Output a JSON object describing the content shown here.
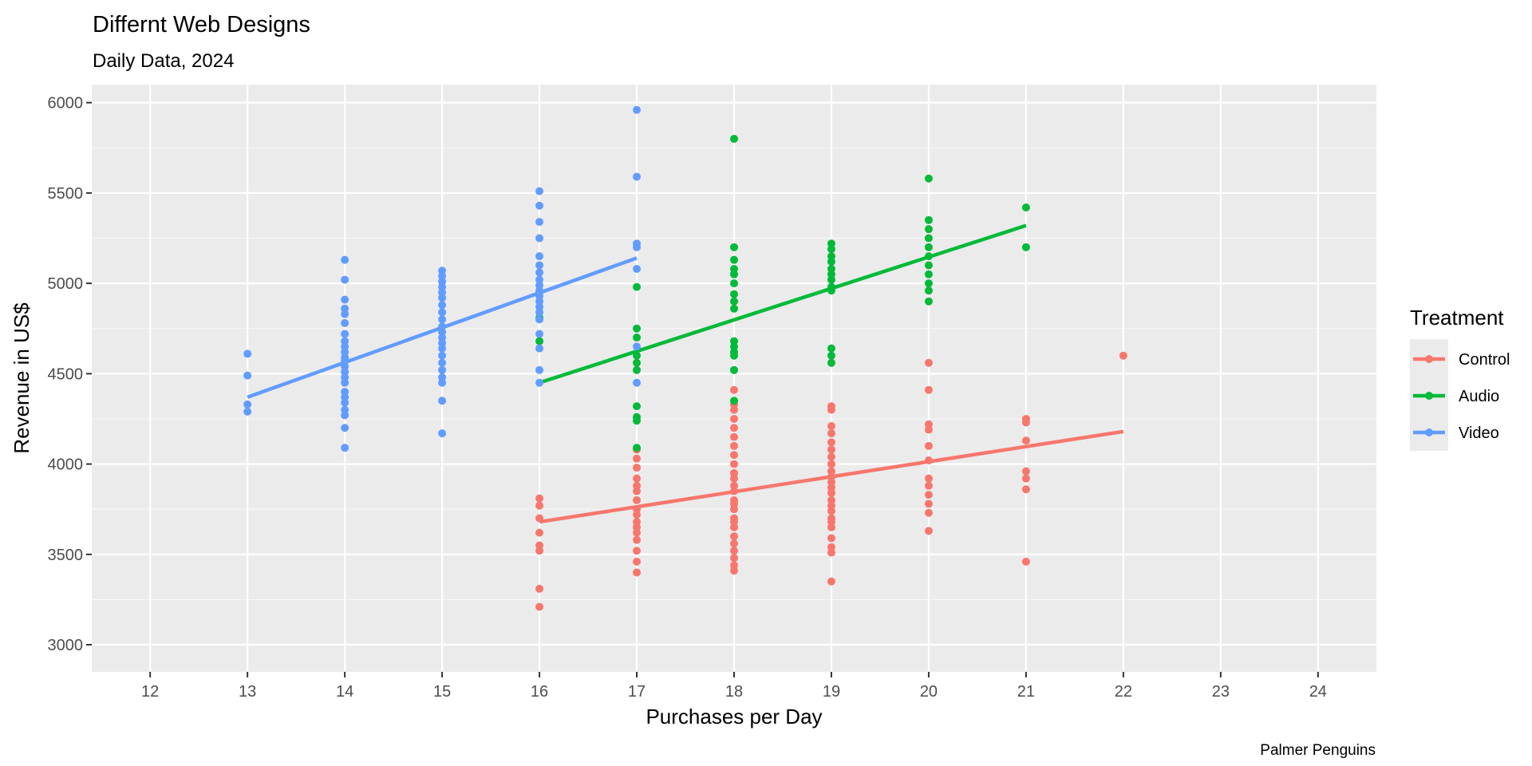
{
  "chart_data": {
    "type": "scatter",
    "title": "Differnt Web Designs",
    "subtitle": "Daily Data, 2024",
    "xlabel": "Purchases per Day",
    "ylabel": "Revenue in US$",
    "caption": "Palmer Penguins",
    "xlim": [
      11.4,
      24.6
    ],
    "ylim": [
      2850,
      6100
    ],
    "x_ticks": [
      12,
      13,
      14,
      15,
      16,
      17,
      18,
      19,
      20,
      21,
      22,
      23,
      24
    ],
    "y_ticks": [
      3000,
      3500,
      4000,
      4500,
      5000,
      5500,
      6000
    ],
    "grid": true,
    "legend": {
      "title": "Treatment",
      "position": "right"
    },
    "series": [
      {
        "name": "Control",
        "color": "#F8766D",
        "fit_line": {
          "x": [
            16,
            22
          ],
          "y": [
            3680,
            4180
          ]
        },
        "points": [
          [
            16,
            3810
          ],
          [
            16,
            3770
          ],
          [
            16,
            3700
          ],
          [
            16,
            3620
          ],
          [
            16,
            3550
          ],
          [
            16,
            3520
          ],
          [
            16,
            3310
          ],
          [
            16,
            3210
          ],
          [
            17,
            4080
          ],
          [
            17,
            4030
          ],
          [
            17,
            3980
          ],
          [
            17,
            3920
          ],
          [
            17,
            3880
          ],
          [
            17,
            3850
          ],
          [
            17,
            3800
          ],
          [
            17,
            3750
          ],
          [
            17,
            3720
          ],
          [
            17,
            3680
          ],
          [
            17,
            3650
          ],
          [
            17,
            3620
          ],
          [
            17,
            3580
          ],
          [
            17,
            3520
          ],
          [
            17,
            3460
          ],
          [
            17,
            3400
          ],
          [
            18,
            4410
          ],
          [
            18,
            4330
          ],
          [
            18,
            4300
          ],
          [
            18,
            4250
          ],
          [
            18,
            4200
          ],
          [
            18,
            4150
          ],
          [
            18,
            4100
          ],
          [
            18,
            4050
          ],
          [
            18,
            4000
          ],
          [
            18,
            3950
          ],
          [
            18,
            3920
          ],
          [
            18,
            3880
          ],
          [
            18,
            3850
          ],
          [
            18,
            3800
          ],
          [
            18,
            3780
          ],
          [
            18,
            3750
          ],
          [
            18,
            3700
          ],
          [
            18,
            3680
          ],
          [
            18,
            3650
          ],
          [
            18,
            3600
          ],
          [
            18,
            3560
          ],
          [
            18,
            3520
          ],
          [
            18,
            3480
          ],
          [
            18,
            3440
          ],
          [
            18,
            3410
          ],
          [
            19,
            4320
          ],
          [
            19,
            4300
          ],
          [
            19,
            4210
          ],
          [
            19,
            4170
          ],
          [
            19,
            4120
          ],
          [
            19,
            4080
          ],
          [
            19,
            4040
          ],
          [
            19,
            4000
          ],
          [
            19,
            3960
          ],
          [
            19,
            3930
          ],
          [
            19,
            3900
          ],
          [
            19,
            3870
          ],
          [
            19,
            3840
          ],
          [
            19,
            3800
          ],
          [
            19,
            3770
          ],
          [
            19,
            3740
          ],
          [
            19,
            3700
          ],
          [
            19,
            3680
          ],
          [
            19,
            3650
          ],
          [
            19,
            3590
          ],
          [
            19,
            3540
          ],
          [
            19,
            3510
          ],
          [
            19,
            3350
          ],
          [
            20,
            4560
          ],
          [
            20,
            4410
          ],
          [
            20,
            4220
          ],
          [
            20,
            4190
          ],
          [
            20,
            4100
          ],
          [
            20,
            4020
          ],
          [
            20,
            3920
          ],
          [
            20,
            3880
          ],
          [
            20,
            3830
          ],
          [
            20,
            3780
          ],
          [
            20,
            3730
          ],
          [
            20,
            3630
          ],
          [
            21,
            4250
          ],
          [
            21,
            4230
          ],
          [
            21,
            4130
          ],
          [
            21,
            3960
          ],
          [
            21,
            3920
          ],
          [
            21,
            3860
          ],
          [
            21,
            3460
          ],
          [
            22,
            4600
          ]
        ]
      },
      {
        "name": "Audio",
        "color": "#00BA38",
        "fit_line": {
          "x": [
            16,
            21
          ],
          "y": [
            4450,
            5320
          ]
        },
        "points": [
          [
            16,
            4810
          ],
          [
            16,
            4680
          ],
          [
            17,
            4980
          ],
          [
            17,
            4750
          ],
          [
            17,
            4700
          ],
          [
            17,
            4600
          ],
          [
            17,
            4560
          ],
          [
            17,
            4520
          ],
          [
            17,
            4320
          ],
          [
            17,
            4260
          ],
          [
            17,
            4240
          ],
          [
            17,
            4090
          ],
          [
            18,
            5800
          ],
          [
            18,
            5200
          ],
          [
            18,
            5130
          ],
          [
            18,
            5080
          ],
          [
            18,
            5050
          ],
          [
            18,
            5000
          ],
          [
            18,
            4940
          ],
          [
            18,
            4900
          ],
          [
            18,
            4860
          ],
          [
            18,
            4680
          ],
          [
            18,
            4650
          ],
          [
            18,
            4620
          ],
          [
            18,
            4600
          ],
          [
            18,
            4520
          ],
          [
            18,
            4350
          ],
          [
            19,
            5220
          ],
          [
            19,
            5190
          ],
          [
            19,
            5150
          ],
          [
            19,
            5120
          ],
          [
            19,
            5080
          ],
          [
            19,
            5050
          ],
          [
            19,
            5020
          ],
          [
            19,
            4980
          ],
          [
            19,
            4960
          ],
          [
            19,
            4640
          ],
          [
            19,
            4600
          ],
          [
            19,
            4560
          ],
          [
            20,
            5580
          ],
          [
            20,
            5350
          ],
          [
            20,
            5300
          ],
          [
            20,
            5250
          ],
          [
            20,
            5200
          ],
          [
            20,
            5150
          ],
          [
            20,
            5100
          ],
          [
            20,
            5050
          ],
          [
            20,
            5000
          ],
          [
            20,
            4960
          ],
          [
            20,
            4900
          ],
          [
            21,
            5420
          ],
          [
            21,
            5200
          ]
        ]
      },
      {
        "name": "Video",
        "color": "#619CFF",
        "fit_line": {
          "x": [
            13,
            17
          ],
          "y": [
            4370,
            5140
          ]
        },
        "points": [
          [
            13,
            4610
          ],
          [
            13,
            4490
          ],
          [
            13,
            4330
          ],
          [
            13,
            4290
          ],
          [
            14,
            5130
          ],
          [
            14,
            5020
          ],
          [
            14,
            4910
          ],
          [
            14,
            4860
          ],
          [
            14,
            4830
          ],
          [
            14,
            4780
          ],
          [
            14,
            4720
          ],
          [
            14,
            4680
          ],
          [
            14,
            4650
          ],
          [
            14,
            4620
          ],
          [
            14,
            4590
          ],
          [
            14,
            4570
          ],
          [
            14,
            4540
          ],
          [
            14,
            4510
          ],
          [
            14,
            4480
          ],
          [
            14,
            4450
          ],
          [
            14,
            4400
          ],
          [
            14,
            4370
          ],
          [
            14,
            4340
          ],
          [
            14,
            4300
          ],
          [
            14,
            4270
          ],
          [
            14,
            4200
          ],
          [
            14,
            4090
          ],
          [
            15,
            5070
          ],
          [
            15,
            5040
          ],
          [
            15,
            5010
          ],
          [
            15,
            4980
          ],
          [
            15,
            4950
          ],
          [
            15,
            4920
          ],
          [
            15,
            4880
          ],
          [
            15,
            4840
          ],
          [
            15,
            4800
          ],
          [
            15,
            4760
          ],
          [
            15,
            4730
          ],
          [
            15,
            4700
          ],
          [
            15,
            4670
          ],
          [
            15,
            4640
          ],
          [
            15,
            4600
          ],
          [
            15,
            4560
          ],
          [
            15,
            4520
          ],
          [
            15,
            4480
          ],
          [
            15,
            4450
          ],
          [
            15,
            4350
          ],
          [
            15,
            4170
          ],
          [
            16,
            5510
          ],
          [
            16,
            5430
          ],
          [
            16,
            5340
          ],
          [
            16,
            5250
          ],
          [
            16,
            5150
          ],
          [
            16,
            5100
          ],
          [
            16,
            5060
          ],
          [
            16,
            5020
          ],
          [
            16,
            4990
          ],
          [
            16,
            4960
          ],
          [
            16,
            4930
          ],
          [
            16,
            4900
          ],
          [
            16,
            4870
          ],
          [
            16,
            4840
          ],
          [
            16,
            4800
          ],
          [
            16,
            4720
          ],
          [
            16,
            4640
          ],
          [
            16,
            4520
          ],
          [
            16,
            4450
          ],
          [
            17,
            5960
          ],
          [
            17,
            5590
          ],
          [
            17,
            5220
          ],
          [
            17,
            5200
          ],
          [
            17,
            5080
          ],
          [
            17,
            4650
          ],
          [
            17,
            4450
          ]
        ]
      }
    ]
  }
}
